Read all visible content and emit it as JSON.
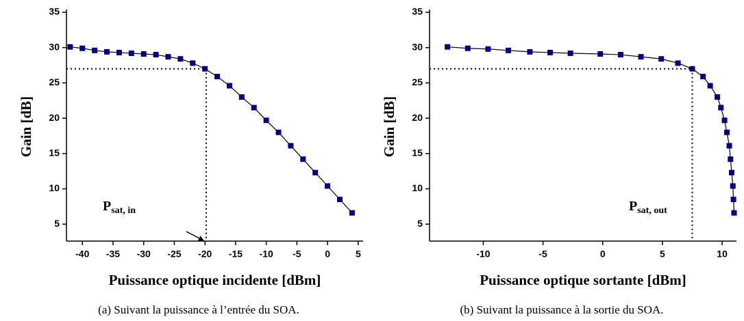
{
  "chart_data": [
    {
      "type": "line",
      "xlabel": "Puissance optique incidente [dBm]",
      "ylabel": "Gain [dB]",
      "caption": "(a) Suivant la puissance à l’entrée du SOA.",
      "annotation": {
        "text": "P",
        "sub": "sat, in"
      },
      "reference": {
        "x": -19.8,
        "y": 27
      },
      "x": [
        -42,
        -40,
        -38,
        -36,
        -34,
        -32,
        -30,
        -28,
        -26,
        -24,
        -22,
        -20,
        -18,
        -16,
        -14,
        -12,
        -10,
        -8,
        -6,
        -4,
        -2,
        0,
        2,
        4
      ],
      "values": [
        30.1,
        29.9,
        29.6,
        29.4,
        29.3,
        29.2,
        29.1,
        29.0,
        28.7,
        28.4,
        27.8,
        27.0,
        25.9,
        24.6,
        23.0,
        21.5,
        19.7,
        18.0,
        16.1,
        14.2,
        12.3,
        10.4,
        8.5,
        6.6
      ],
      "color": "#000000",
      "marker_color": "#000080",
      "xlim": [
        -42.6,
        5.8
      ],
      "xticks": [
        -40,
        -35,
        -30,
        -25,
        -20,
        -15,
        -10,
        -5,
        0,
        5
      ],
      "ylim": [
        2.6,
        35
      ],
      "yticks": [
        5,
        10,
        15,
        20,
        25,
        30,
        35
      ]
    },
    {
      "type": "line",
      "xlabel": "Puissance optique sortante [dBm]",
      "ylabel": "Gain [dB]",
      "caption": "(b) Suivant la puissance à la sortie du SOA.",
      "annotation": {
        "text": "P",
        "sub": "sat, out"
      },
      "reference": {
        "x": 7.5,
        "y": 27
      },
      "x": [
        -13.0,
        -11.3,
        -9.6,
        -7.9,
        -6.1,
        -4.4,
        -2.7,
        -0.2,
        1.5,
        3.2,
        4.9,
        6.3,
        7.5,
        8.4,
        9.0,
        9.6,
        9.9,
        10.2,
        10.4,
        10.6,
        10.7,
        10.8,
        10.9,
        10.95,
        11.0
      ],
      "values": [
        30.1,
        29.9,
        29.8,
        29.6,
        29.4,
        29.3,
        29.2,
        29.1,
        29.0,
        28.7,
        28.4,
        27.8,
        27.0,
        25.9,
        24.6,
        23.0,
        21.5,
        19.7,
        18.0,
        16.1,
        14.2,
        12.3,
        10.4,
        8.5,
        6.6
      ],
      "color": "#000000",
      "marker_color": "#000080",
      "xlim": [
        -14.5,
        11.2
      ],
      "xticks": [
        -10,
        -5,
        0,
        5,
        10
      ],
      "ylim": [
        2.6,
        35
      ],
      "yticks": [
        5,
        10,
        15,
        20,
        25,
        30,
        35
      ]
    }
  ]
}
